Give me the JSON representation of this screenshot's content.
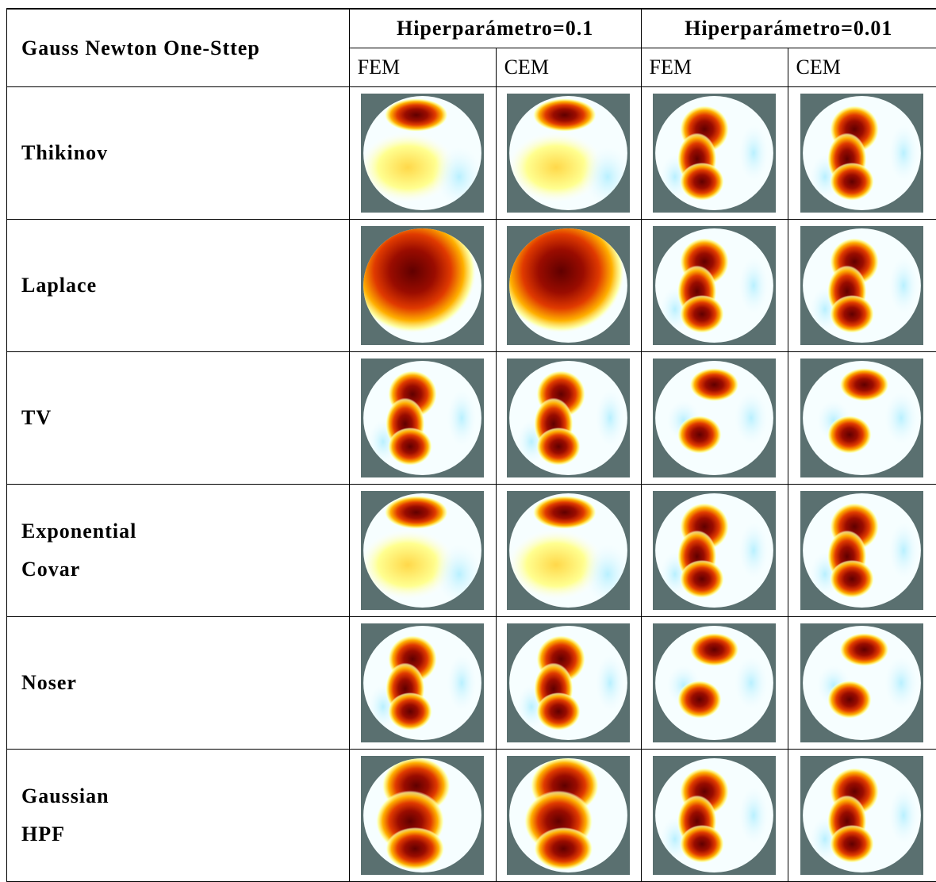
{
  "header": {
    "title": "Gauss Newton One-Sttep",
    "groups": [
      "Hiperparámetro=0.1",
      "Hiperparámetro=0.01"
    ],
    "subcolumns": [
      "FEM",
      "CEM",
      "FEM",
      "CEM"
    ]
  },
  "rows": [
    {
      "label": [
        "Thikinov"
      ]
    },
    {
      "label": [
        "Laplace"
      ]
    },
    {
      "label": [
        "TV"
      ]
    },
    {
      "label": [
        "Exponential",
        "Covar"
      ]
    },
    {
      "label": [
        "Noser"
      ]
    },
    {
      "label": [
        "Gaussian",
        "HPF"
      ]
    }
  ]
}
